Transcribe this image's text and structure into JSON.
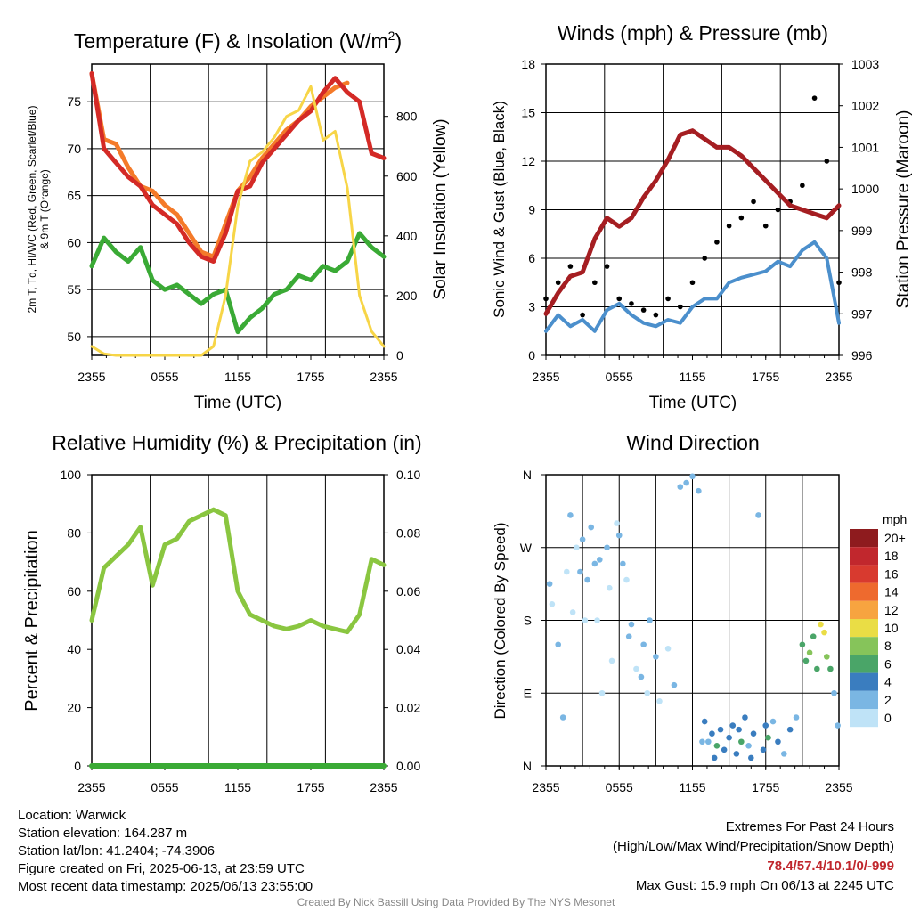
{
  "chart_data": [
    {
      "type": "line",
      "title": "Temperature (F) & Insolation (W/m²)",
      "title_text": "Temperature (F) & Insolation (W/m",
      "title_sup": "2",
      "title_close": ")",
      "xlabel": "Time (UTC)",
      "ylabel_line1": "2m T, Td, HI/WC (Red, Green, Scarlet/Blue)",
      "ylabel_line2": "& 9m T (Orange)",
      "y2label": "Solar Insolation (Yellow)",
      "x_ticks": [
        "2355",
        "0555",
        "1155",
        "1755",
        "2355"
      ],
      "ylim": [
        48,
        79
      ],
      "y_ticks": [
        50,
        55,
        60,
        65,
        70,
        75
      ],
      "y2lim": [
        0,
        975
      ],
      "y2_ticks": [
        0,
        200,
        400,
        600,
        800
      ],
      "x": [
        0,
        1,
        2,
        3,
        4,
        5,
        6,
        7,
        8,
        9,
        10,
        11,
        12,
        13,
        14,
        15,
        16,
        17,
        18,
        19,
        20,
        21,
        22,
        23,
        24
      ],
      "series": [
        {
          "key": "t9m",
          "color": "#f47a29",
          "values": [
            78,
            71,
            70.5,
            68,
            66,
            65.5,
            64,
            63,
            61,
            59,
            58.5,
            62,
            65.5,
            67,
            69,
            70.5,
            72,
            73,
            74.5,
            75.5,
            76.5,
            77,
            null,
            null,
            null
          ]
        },
        {
          "key": "t2m",
          "color": "#d42a26",
          "values": [
            78,
            70,
            68.5,
            67,
            66,
            64,
            63,
            62,
            60,
            58.5,
            58,
            61,
            65.5,
            66,
            68.5,
            70,
            71.5,
            73,
            74,
            76,
            77.5,
            76,
            75,
            69.5,
            69
          ]
        },
        {
          "key": "td",
          "color": "#3aaa35",
          "values": [
            57.5,
            60.5,
            59,
            58,
            59.5,
            56,
            55,
            55.5,
            54.5,
            53.5,
            54.5,
            55,
            50.5,
            52,
            53,
            54.5,
            55,
            56.5,
            56,
            57.5,
            57,
            58,
            61,
            59.5,
            58.5
          ]
        },
        {
          "key": "solar",
          "axis": "y2",
          "color": "#f7d547",
          "values": [
            30,
            5,
            0,
            0,
            0,
            0,
            0,
            0,
            0,
            0,
            30,
            200,
            500,
            650,
            680,
            730,
            800,
            820,
            900,
            720,
            750,
            560,
            200,
            80,
            30
          ]
        }
      ]
    },
    {
      "type": "line",
      "title": "Winds (mph) & Pressure (mb)",
      "xlabel": "Time (UTC)",
      "ylabel": "Sonic Wind & Gust (Blue, Black)",
      "y2label": "Station Pressure (Maroon)",
      "x_ticks": [
        "2355",
        "0555",
        "1155",
        "1755",
        "2355"
      ],
      "ylim": [
        0,
        18
      ],
      "y_ticks": [
        0,
        3,
        6,
        9,
        12,
        15,
        18
      ],
      "y2lim": [
        996,
        1003
      ],
      "y2_ticks": [
        996,
        997,
        998,
        999,
        1000,
        1001,
        1002,
        1003
      ],
      "x": [
        0,
        1,
        2,
        3,
        4,
        5,
        6,
        7,
        8,
        9,
        10,
        11,
        12,
        13,
        14,
        15,
        16,
        17,
        18,
        19,
        20,
        21,
        22,
        23,
        24
      ],
      "series": [
        {
          "key": "wind",
          "color": "#4b8fcc",
          "values": [
            1.5,
            2.5,
            1.8,
            2.2,
            1.5,
            2.8,
            3.2,
            2.5,
            2.0,
            1.8,
            2.2,
            2.0,
            3.0,
            3.5,
            3.5,
            4.5,
            4.8,
            5.0,
            5.2,
            5.8,
            5.5,
            6.5,
            7.0,
            6.0,
            2.0
          ]
        },
        {
          "key": "gust",
          "color": "#000000",
          "values": [
            3.5,
            4.5,
            5.5,
            2.5,
            4.5,
            5.5,
            3.5,
            3.2,
            2.8,
            2.5,
            3.5,
            3.0,
            4.5,
            6.0,
            7.0,
            8.0,
            8.5,
            9.5,
            8.0,
            9.0,
            9.5,
            10.5,
            15.9,
            12.0,
            4.5
          ]
        },
        {
          "key": "pressure",
          "axis": "y2",
          "color": "#a51e22",
          "values": [
            997.0,
            997.5,
            997.9,
            998.0,
            998.8,
            999.3,
            999.1,
            999.3,
            999.8,
            1000.2,
            1000.7,
            1001.3,
            1001.4,
            1001.2,
            1001.0,
            1001.0,
            1000.8,
            1000.5,
            1000.2,
            999.9,
            999.6,
            999.5,
            999.4,
            999.3,
            999.6
          ]
        }
      ]
    },
    {
      "type": "line",
      "title": "Relative Humidity (%) & Precipitation (in)",
      "ylabel": "Percent & Precipitation",
      "x_ticks": [
        "2355",
        "0555",
        "1155",
        "1755",
        "2355"
      ],
      "ylim": [
        0,
        100
      ],
      "y_ticks": [
        0,
        20,
        40,
        60,
        80,
        100
      ],
      "y2lim": [
        0,
        0.1
      ],
      "y2_ticks": [
        "0.00",
        "0.02",
        "0.04",
        "0.06",
        "0.08",
        "0.10"
      ],
      "x": [
        0,
        1,
        2,
        3,
        4,
        5,
        6,
        7,
        8,
        9,
        10,
        11,
        12,
        13,
        14,
        15,
        16,
        17,
        18,
        19,
        20,
        21,
        22,
        23,
        24
      ],
      "series": [
        {
          "key": "rh",
          "color": "#8ac640",
          "values": [
            50,
            68,
            72,
            76,
            82,
            62,
            76,
            78,
            84,
            86,
            88,
            86,
            60,
            52,
            50,
            48,
            47,
            48,
            50,
            48,
            47,
            46,
            52,
            71,
            69
          ]
        },
        {
          "key": "precip",
          "axis": "y2",
          "color": "#3aaa35",
          "values": [
            0,
            0,
            0,
            0,
            0,
            0,
            0,
            0,
            0,
            0,
            0,
            0,
            0,
            0,
            0,
            0,
            0,
            0,
            0,
            0,
            0,
            0,
            0,
            0,
            0
          ]
        }
      ]
    },
    {
      "type": "scatter",
      "title": "Wind Direction",
      "ylabel": "Direction (Colored By Speed)",
      "x_ticks": [
        "2355",
        "0555",
        "1155",
        "1755",
        "2355"
      ],
      "y_ticks": [
        "N",
        "E",
        "S",
        "W",
        "N"
      ],
      "ylim": [
        0,
        360
      ],
      "legend_title": "mph",
      "legend_labels": [
        "20+",
        "18",
        "16",
        "14",
        "12",
        "10",
        "8",
        "6",
        "4",
        "2",
        "0"
      ],
      "legend_colors": [
        "#8e1b1e",
        "#c1272d",
        "#d83a2f",
        "#ee6a2e",
        "#f7a440",
        "#eadd45",
        "#86c45a",
        "#4aa568",
        "#3a7dbf",
        "#7ab6e3",
        "#bfe3f7"
      ],
      "points": [
        {
          "x": 0.3,
          "y": 225,
          "s": 2
        },
        {
          "x": 0.5,
          "y": 200,
          "s": 1
        },
        {
          "x": 1.0,
          "y": 150,
          "s": 2
        },
        {
          "x": 1.4,
          "y": 60,
          "s": 3
        },
        {
          "x": 1.7,
          "y": 240,
          "s": 1
        },
        {
          "x": 2.0,
          "y": 310,
          "s": 2
        },
        {
          "x": 2.5,
          "y": 270,
          "s": 1
        },
        {
          "x": 3.0,
          "y": 280,
          "s": 3
        },
        {
          "x": 3.2,
          "y": 180,
          "s": 1
        },
        {
          "x": 3.4,
          "y": 230,
          "s": 2
        },
        {
          "x": 3.7,
          "y": 295,
          "s": 3
        },
        {
          "x": 4.0,
          "y": 250,
          "s": 2
        },
        {
          "x": 4.2,
          "y": 180,
          "s": 1
        },
        {
          "x": 4.6,
          "y": 90,
          "s": 1
        },
        {
          "x": 5.0,
          "y": 270,
          "s": 2
        },
        {
          "x": 5.4,
          "y": 130,
          "s": 1
        },
        {
          "x": 5.8,
          "y": 300,
          "s": 1
        },
        {
          "x": 6.0,
          "y": 285,
          "s": 3
        },
        {
          "x": 6.3,
          "y": 250,
          "s": 2
        },
        {
          "x": 6.6,
          "y": 230,
          "s": 1
        },
        {
          "x": 7.0,
          "y": 175,
          "s": 2
        },
        {
          "x": 7.4,
          "y": 120,
          "s": 1
        },
        {
          "x": 8.0,
          "y": 150,
          "s": 2
        },
        {
          "x": 8.3,
          "y": 90,
          "s": 1
        },
        {
          "x": 8.5,
          "y": 180,
          "s": 2
        },
        {
          "x": 9.0,
          "y": 135,
          "s": 2
        },
        {
          "x": 9.3,
          "y": 80,
          "s": 1
        },
        {
          "x": 10.0,
          "y": 145,
          "s": 1
        },
        {
          "x": 10.5,
          "y": 100,
          "s": 2
        },
        {
          "x": 11.0,
          "y": 345,
          "s": 3
        },
        {
          "x": 11.5,
          "y": 350,
          "s": 2
        },
        {
          "x": 12.0,
          "y": 358,
          "s": 2
        },
        {
          "x": 12.5,
          "y": 340,
          "s": 3
        },
        {
          "x": 13.0,
          "y": 55,
          "s": 4
        },
        {
          "x": 13.3,
          "y": 30,
          "s": 3
        },
        {
          "x": 13.6,
          "y": 40,
          "s": 4
        },
        {
          "x": 14.0,
          "y": 25,
          "s": 6
        },
        {
          "x": 14.3,
          "y": 45,
          "s": 4
        },
        {
          "x": 14.6,
          "y": 20,
          "s": 5
        },
        {
          "x": 15.0,
          "y": 35,
          "s": 4
        },
        {
          "x": 15.3,
          "y": 50,
          "s": 4
        },
        {
          "x": 15.6,
          "y": 15,
          "s": 4
        },
        {
          "x": 16.0,
          "y": 30,
          "s": 6
        },
        {
          "x": 16.3,
          "y": 60,
          "s": 4
        },
        {
          "x": 16.6,
          "y": 25,
          "s": 3
        },
        {
          "x": 17.0,
          "y": 40,
          "s": 5
        },
        {
          "x": 17.4,
          "y": 310,
          "s": 2
        },
        {
          "x": 17.8,
          "y": 20,
          "s": 4
        },
        {
          "x": 18.2,
          "y": 35,
          "s": 6
        },
        {
          "x": 18.6,
          "y": 55,
          "s": 3
        },
        {
          "x": 19.0,
          "y": 30,
          "s": 4
        },
        {
          "x": 19.5,
          "y": 15,
          "s": 3
        },
        {
          "x": 20.0,
          "y": 45,
          "s": 4
        },
        {
          "x": 20.5,
          "y": 60,
          "s": 3
        },
        {
          "x": 21.0,
          "y": 150,
          "s": 7
        },
        {
          "x": 21.3,
          "y": 130,
          "s": 6
        },
        {
          "x": 21.6,
          "y": 140,
          "s": 8
        },
        {
          "x": 21.9,
          "y": 160,
          "s": 6
        },
        {
          "x": 22.2,
          "y": 120,
          "s": 7
        },
        {
          "x": 22.5,
          "y": 175,
          "s": 10
        },
        {
          "x": 22.8,
          "y": 165,
          "s": 10
        },
        {
          "x": 23.0,
          "y": 135,
          "s": 8
        },
        {
          "x": 23.3,
          "y": 120,
          "s": 6
        },
        {
          "x": 23.6,
          "y": 90,
          "s": 2
        },
        {
          "x": 23.9,
          "y": 50,
          "s": 3
        },
        {
          "x": 2.2,
          "y": 190,
          "s": 1
        },
        {
          "x": 2.8,
          "y": 240,
          "s": 3
        },
        {
          "x": 4.4,
          "y": 255,
          "s": 3
        },
        {
          "x": 5.2,
          "y": 220,
          "s": 1
        },
        {
          "x": 6.8,
          "y": 160,
          "s": 2
        },
        {
          "x": 7.8,
          "y": 110,
          "s": 2
        },
        {
          "x": 12.8,
          "y": 30,
          "s": 3
        },
        {
          "x": 13.8,
          "y": 10,
          "s": 4
        },
        {
          "x": 15.8,
          "y": 45,
          "s": 5
        },
        {
          "x": 16.8,
          "y": 10,
          "s": 4
        },
        {
          "x": 18.0,
          "y": 50,
          "s": 4
        }
      ]
    }
  ],
  "info": {
    "location": "Location: Warwick",
    "elevation": "Station elevation: 164.287 m",
    "latlon": "Station lat/lon: 41.2404; -74.3906",
    "created": "Figure created on Fri, 2025-06-13, at 23:59 UTC",
    "recent": "Most recent data timestamp: 2025/06/13 23:55:00"
  },
  "extremes": {
    "title": "Extremes For Past 24 Hours",
    "subtitle": "(High/Low/Max Wind/Precipitation/Snow Depth)",
    "values": "78.4/57.4/10.1/0/-999",
    "max_gust": "Max Gust: 15.9 mph On 06/13 at 2245 UTC"
  },
  "credit": "Created By Nick Bassill Using Data Provided By The NYS Mesonet"
}
